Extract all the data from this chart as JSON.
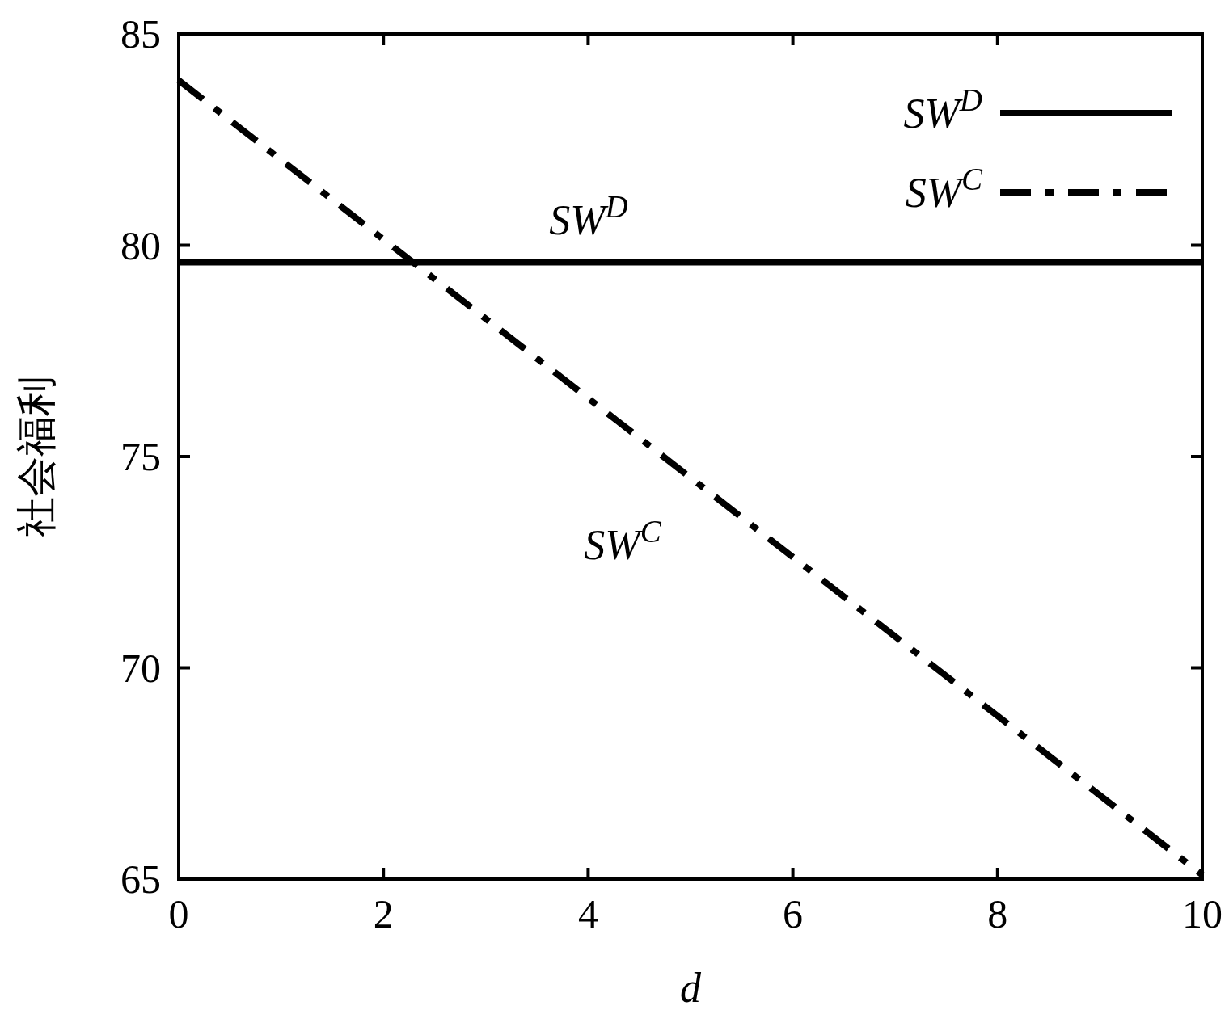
{
  "chart_data": {
    "type": "line",
    "xlabel": "d",
    "ylabel": "社会福利",
    "x": [
      0,
      10
    ],
    "series": [
      {
        "name": "SW$^{D}$",
        "color": "#000000",
        "values": [
          79.6,
          79.6
        ],
        "line_style": "solid"
      },
      {
        "name": "SW$^{C}$",
        "color": "#000000",
        "values": [
          83.9,
          65.1
        ],
        "line_style": "dashdot"
      }
    ],
    "xlim": [
      0,
      10
    ],
    "ylim": [
      65,
      85
    ],
    "xticks": [
      0,
      2,
      4,
      6,
      8,
      10
    ],
    "yticks": [
      65,
      70,
      75,
      80,
      85
    ],
    "grid": false,
    "legend": "top right",
    "marker": "none",
    "annotations": [
      "SW$^{D}$",
      "SW$^{C}$"
    ]
  }
}
